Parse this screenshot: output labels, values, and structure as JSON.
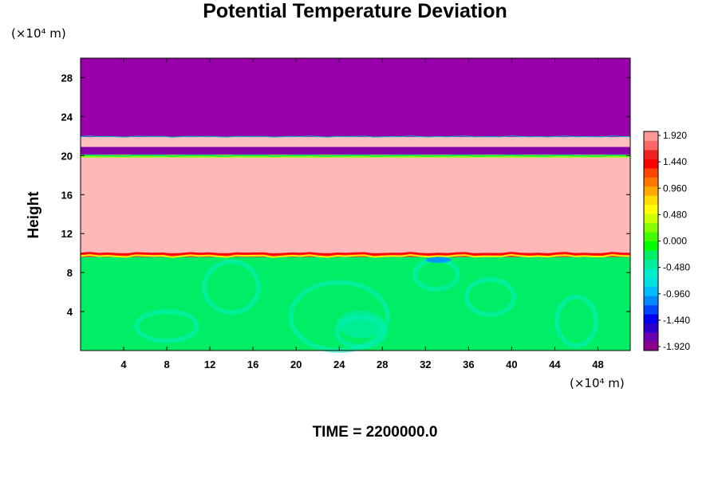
{
  "chart_data": {
    "type": "heatmap",
    "title": "Potential Temperature Deviation",
    "ylabel": "Height",
    "xlabel": "",
    "x_unit": "(×10⁴ m)",
    "y_unit": "(×10⁴ m)",
    "footer": "TIME = 2200000.0",
    "xlim": [
      0,
      51
    ],
    "ylim": [
      0,
      30
    ],
    "x_ticks": [
      "4",
      "8",
      "12",
      "16",
      "20",
      "24",
      "28",
      "32",
      "36",
      "40",
      "44",
      "48"
    ],
    "y_ticks": [
      "4",
      "8",
      "12",
      "16",
      "20",
      "24",
      "28"
    ],
    "colorbar": {
      "labels": [
        "1.920",
        "1.440",
        "0.960",
        "0.480",
        "0.000",
        "-0.480",
        "-0.960",
        "-1.440",
        "-1.920"
      ],
      "min": -1.92,
      "max": 1.92,
      "colors": [
        "#8B008B",
        "#6a00b0",
        "#2b00cc",
        "#0000ee",
        "#0044ff",
        "#0088ff",
        "#00bbff",
        "#00e0e0",
        "#00eecc",
        "#00ee99",
        "#00ee66",
        "#00ff00",
        "#44ff00",
        "#88ff00",
        "#ccff00",
        "#ffff00",
        "#ffdd00",
        "#ffaa00",
        "#ff7700",
        "#ff4400",
        "#ff0000",
        "#ee2222",
        "#ff6666",
        "#ff9999"
      ]
    },
    "layers": [
      {
        "from": 0,
        "to": 9.6,
        "value": -0.2,
        "color": "#00ee66"
      },
      {
        "from": 9.6,
        "to": 10.0,
        "value": 1.5,
        "color": "#ff2020"
      },
      {
        "from": 10.0,
        "to": 19.8,
        "value": 1.92,
        "color": "#ffb8b8"
      },
      {
        "from": 19.8,
        "to": 20.1,
        "value": 0.0,
        "color": "#88ff00"
      },
      {
        "from": 20.1,
        "to": 20.9,
        "value": -1.92,
        "color": "#8800aa"
      },
      {
        "from": 20.9,
        "to": 21.9,
        "value": 1.92,
        "color": "#ffc0c0"
      },
      {
        "from": 21.9,
        "to": 30,
        "value": -1.92,
        "color": "#9900aa"
      }
    ]
  }
}
